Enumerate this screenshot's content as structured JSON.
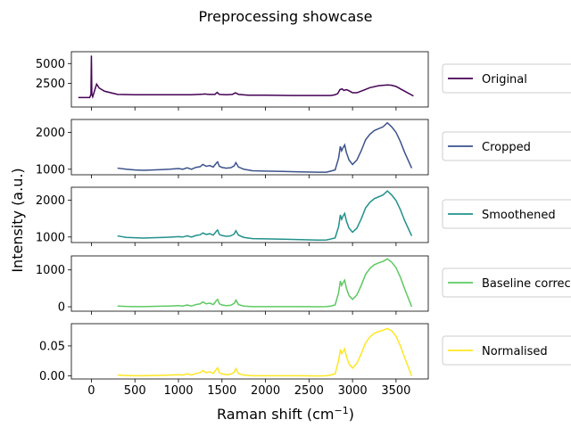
{
  "chart_data": {
    "type": "line",
    "title": "Preprocessing showcase",
    "xlabel_main": "Raman shift (cm",
    "xlabel_sup": "−1",
    "xlabel_close": ")",
    "ylabel": "Intensity (a.u.)",
    "x_ticks": [
      {
        "v": 0,
        "label": "0"
      },
      {
        "v": 500,
        "label": "500"
      },
      {
        "v": 1000,
        "label": "1000"
      },
      {
        "v": 1500,
        "label": "1500"
      },
      {
        "v": 2000,
        "label": "2000"
      },
      {
        "v": 2500,
        "label": "2500"
      },
      {
        "v": 3000,
        "label": "3000"
      },
      {
        "v": 3500,
        "label": "3500"
      }
    ],
    "xlim": [
      -230,
      3870
    ],
    "panels": [
      {
        "name": "Original",
        "color": "#440154",
        "ylim": [
          -500,
          6500
        ],
        "yticks": [
          {
            "v": 2500,
            "label": "2500"
          },
          {
            "v": 5000,
            "label": "5000"
          }
        ],
        "x": [
          -150,
          -20,
          -5,
          0,
          5,
          15,
          60,
          90,
          150,
          300,
          500,
          800,
          1000,
          1150,
          1280,
          1300,
          1350,
          1420,
          1445,
          1470,
          1550,
          1620,
          1655,
          1690,
          1800,
          2000,
          2300,
          2600,
          2750,
          2800,
          2830,
          2855,
          2880,
          2900,
          2930,
          2960,
          3000,
          3050,
          3120,
          3200,
          3300,
          3400,
          3450,
          3500,
          3600,
          3700
        ],
        "values": [
          700,
          700,
          1100,
          6000,
          1100,
          800,
          2400,
          1900,
          1500,
          1100,
          1050,
          1050,
          1050,
          1050,
          1120,
          1150,
          1100,
          1100,
          1350,
          1100,
          1050,
          1100,
          1300,
          1100,
          1000,
          1000,
          950,
          950,
          950,
          1050,
          1200,
          1700,
          1800,
          1600,
          1700,
          1550,
          1300,
          1300,
          1600,
          1950,
          2200,
          2300,
          2250,
          2100,
          1500,
          900
        ]
      },
      {
        "name": "Cropped",
        "color": "#3b528b",
        "ylim": [
          850,
          2350
        ],
        "yticks": [
          {
            "v": 1000,
            "label": "1000"
          },
          {
            "v": 2000,
            "label": "2000"
          }
        ],
        "x": [
          300,
          400,
          500,
          600,
          700,
          800,
          900,
          1000,
          1050,
          1100,
          1150,
          1200,
          1250,
          1280,
          1320,
          1360,
          1400,
          1440,
          1450,
          1470,
          1500,
          1550,
          1600,
          1640,
          1660,
          1690,
          1750,
          1850,
          2000,
          2200,
          2400,
          2600,
          2700,
          2750,
          2800,
          2840,
          2860,
          2875,
          2890,
          2910,
          2930,
          2960,
          3000,
          3050,
          3100,
          3150,
          3200,
          3250,
          3300,
          3350,
          3400,
          3450,
          3500,
          3550,
          3600,
          3680
        ],
        "values": [
          1030,
          1000,
          980,
          970,
          980,
          990,
          1000,
          1020,
          1000,
          1040,
          1000,
          1050,
          1070,
          1130,
          1080,
          1100,
          1060,
          1180,
          1200,
          1080,
          1050,
          1030,
          1040,
          1090,
          1180,
          1060,
          1000,
          960,
          950,
          940,
          930,
          920,
          920,
          950,
          980,
          1300,
          1620,
          1500,
          1580,
          1660,
          1450,
          1250,
          1130,
          1250,
          1500,
          1800,
          1950,
          2050,
          2100,
          2150,
          2260,
          2150,
          2000,
          1750,
          1450,
          1030
        ]
      },
      {
        "name": "Smoothened",
        "color": "#21918c",
        "ylim": [
          850,
          2350
        ],
        "yticks": [
          {
            "v": 1000,
            "label": "1000"
          },
          {
            "v": 2000,
            "label": "2000"
          }
        ],
        "x": [
          300,
          400,
          500,
          600,
          700,
          800,
          900,
          1000,
          1050,
          1100,
          1150,
          1200,
          1250,
          1280,
          1320,
          1360,
          1400,
          1440,
          1450,
          1470,
          1500,
          1550,
          1600,
          1640,
          1660,
          1690,
          1750,
          1850,
          2000,
          2200,
          2400,
          2600,
          2700,
          2750,
          2800,
          2840,
          2860,
          2875,
          2890,
          2910,
          2930,
          2960,
          3000,
          3050,
          3100,
          3150,
          3200,
          3250,
          3300,
          3350,
          3400,
          3450,
          3500,
          3550,
          3600,
          3680
        ],
        "values": [
          1030,
          990,
          980,
          970,
          980,
          985,
          995,
          1010,
          1000,
          1030,
          1000,
          1040,
          1060,
          1110,
          1070,
          1090,
          1050,
          1170,
          1190,
          1070,
          1040,
          1020,
          1030,
          1080,
          1170,
          1050,
          990,
          955,
          950,
          940,
          930,
          915,
          920,
          945,
          975,
          1280,
          1600,
          1480,
          1560,
          1640,
          1430,
          1240,
          1130,
          1240,
          1490,
          1790,
          1940,
          2040,
          2090,
          2140,
          2250,
          2140,
          1990,
          1740,
          1440,
          1030
        ]
      },
      {
        "name": "Baseline corrected",
        "color": "#5ec962",
        "ylim": [
          -120,
          1380
        ],
        "yticks": [
          {
            "v": 0,
            "label": "0"
          },
          {
            "v": 1000,
            "label": "1000"
          }
        ],
        "x": [
          300,
          400,
          500,
          600,
          700,
          800,
          900,
          1000,
          1050,
          1100,
          1150,
          1200,
          1250,
          1280,
          1320,
          1360,
          1400,
          1440,
          1450,
          1470,
          1500,
          1550,
          1600,
          1640,
          1660,
          1690,
          1750,
          1850,
          2000,
          2200,
          2400,
          2600,
          2700,
          2750,
          2800,
          2840,
          2860,
          2875,
          2890,
          2910,
          2930,
          2960,
          3000,
          3050,
          3100,
          3150,
          3200,
          3250,
          3300,
          3350,
          3400,
          3450,
          3500,
          3550,
          3600,
          3680
        ],
        "values": [
          20,
          10,
          5,
          5,
          10,
          15,
          20,
          30,
          20,
          50,
          20,
          60,
          80,
          130,
          80,
          100,
          60,
          180,
          200,
          80,
          50,
          30,
          40,
          90,
          180,
          60,
          20,
          5,
          5,
          5,
          5,
          0,
          5,
          20,
          50,
          380,
          700,
          580,
          650,
          720,
          500,
          300,
          200,
          320,
          580,
          880,
          1040,
          1140,
          1190,
          1230,
          1300,
          1210,
          1060,
          800,
          480,
          0
        ]
      },
      {
        "name": "Normalised",
        "color": "#fde725",
        "ylim": [
          -0.005,
          0.087
        ],
        "yticks": [
          {
            "v": 0.0,
            "label": "0.00"
          },
          {
            "v": 0.05,
            "label": "0.05"
          }
        ],
        "x": [
          300,
          400,
          500,
          600,
          700,
          800,
          900,
          1000,
          1050,
          1100,
          1150,
          1200,
          1250,
          1280,
          1320,
          1360,
          1400,
          1440,
          1450,
          1470,
          1500,
          1550,
          1600,
          1640,
          1660,
          1690,
          1750,
          1850,
          2000,
          2200,
          2400,
          2600,
          2700,
          2750,
          2800,
          2840,
          2860,
          2875,
          2890,
          2910,
          2930,
          2960,
          3000,
          3050,
          3100,
          3150,
          3200,
          3250,
          3300,
          3350,
          3400,
          3450,
          3500,
          3550,
          3600,
          3680
        ],
        "values": [
          0.0015,
          0.0008,
          0.0004,
          0.0004,
          0.0008,
          0.001,
          0.0015,
          0.002,
          0.0015,
          0.0035,
          0.0015,
          0.004,
          0.0055,
          0.009,
          0.0055,
          0.007,
          0.004,
          0.012,
          0.0135,
          0.0055,
          0.0035,
          0.002,
          0.003,
          0.006,
          0.012,
          0.004,
          0.0015,
          0.0004,
          0.0004,
          0.0004,
          0.0004,
          0.0,
          0.0004,
          0.0015,
          0.0035,
          0.026,
          0.044,
          0.037,
          0.041,
          0.045,
          0.032,
          0.02,
          0.013,
          0.021,
          0.037,
          0.055,
          0.065,
          0.071,
          0.074,
          0.076,
          0.079,
          0.075,
          0.066,
          0.05,
          0.03,
          0.0
        ]
      }
    ]
  }
}
